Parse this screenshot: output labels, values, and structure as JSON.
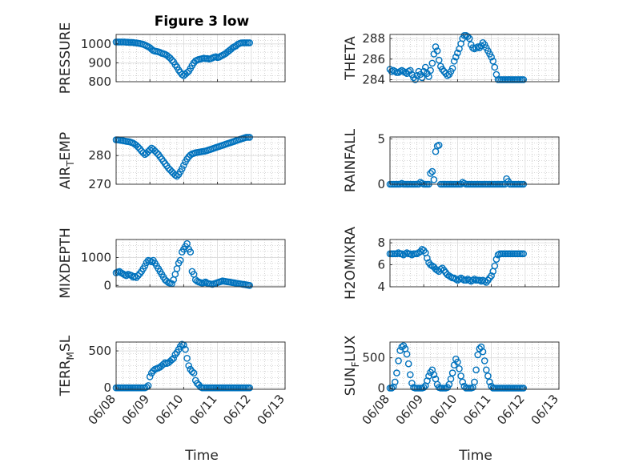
{
  "figure": {
    "title": "Figure 3 low",
    "xlabel": "Time"
  },
  "colors": {
    "marker": "#0072bd",
    "axis": "#262626",
    "grid": "#b0b0b0"
  },
  "chart_data": [
    {
      "type": "scatter",
      "name": "pressure",
      "ylabel": "PRESSURE",
      "ylim": [
        800,
        1050
      ],
      "yticks": [
        800,
        900,
        1000
      ],
      "ytick_labels": [
        "800",
        "900",
        "1000"
      ],
      "x": [
        0,
        0.05,
        0.1,
        0.15,
        0.2,
        0.25,
        0.3,
        0.35,
        0.4,
        0.45,
        0.5,
        0.55,
        0.6,
        0.65,
        0.7,
        0.75,
        0.8,
        0.85,
        0.9,
        0.95,
        1.0,
        1.05,
        1.1,
        1.15,
        1.2,
        1.25,
        1.3,
        1.35,
        1.4,
        1.45,
        1.5,
        1.55,
        1.6,
        1.65,
        1.7,
        1.75,
        1.8,
        1.85,
        1.9,
        1.95,
        2.0,
        2.05,
        2.1,
        2.15,
        2.2,
        2.25,
        2.3,
        2.35,
        2.4,
        2.45,
        2.5,
        2.55,
        2.6,
        2.65,
        2.7,
        2.75,
        2.8,
        2.85,
        2.9,
        2.95,
        3.0,
        3.05,
        3.1,
        3.15,
        3.2,
        3.25,
        3.3,
        3.35,
        3.4,
        3.45,
        3.5,
        3.55,
        3.6,
        3.65,
        3.7,
        3.75,
        3.8,
        3.85,
        3.9,
        3.95
      ],
      "y": [
        1010,
        1010,
        1010,
        1010,
        1010,
        1010,
        1009,
        1009,
        1008,
        1008,
        1007,
        1006,
        1005,
        1004,
        1002,
        1000,
        998,
        994,
        990,
        985,
        980,
        972,
        965,
        962,
        960,
        958,
        955,
        950,
        948,
        945,
        940,
        932,
        925,
        915,
        905,
        890,
        878,
        862,
        850,
        838,
        832,
        840,
        848,
        855,
        870,
        885,
        900,
        910,
        915,
        918,
        920,
        922,
        924,
        922,
        923,
        920,
        922,
        926,
        930,
        932,
        928,
        930,
        935,
        940,
        945,
        950,
        958,
        965,
        972,
        980,
        985,
        990,
        998,
        1002,
        1005,
        1006,
        1006,
        1006,
        1006,
        1006
      ]
    },
    {
      "type": "scatter",
      "name": "theta",
      "ylabel": "THETA",
      "ylim": [
        283.8,
        288.4
      ],
      "yticks": [
        284,
        286,
        288
      ],
      "ytick_labels": [
        "284",
        "286",
        "288"
      ],
      "x": [
        0,
        0.05,
        0.1,
        0.15,
        0.2,
        0.25,
        0.3,
        0.35,
        0.4,
        0.45,
        0.5,
        0.55,
        0.6,
        0.65,
        0.7,
        0.75,
        0.8,
        0.85,
        0.9,
        0.95,
        1.0,
        1.05,
        1.1,
        1.15,
        1.2,
        1.25,
        1.3,
        1.35,
        1.4,
        1.45,
        1.5,
        1.55,
        1.6,
        1.65,
        1.7,
        1.75,
        1.8,
        1.85,
        1.9,
        1.95,
        2.0,
        2.05,
        2.1,
        2.15,
        2.2,
        2.25,
        2.3,
        2.35,
        2.4,
        2.45,
        2.5,
        2.55,
        2.6,
        2.65,
        2.7,
        2.75,
        2.8,
        2.85,
        2.9,
        2.95,
        3.0,
        3.05,
        3.1,
        3.15,
        3.2,
        3.25,
        3.3,
        3.35,
        3.4,
        3.45,
        3.5,
        3.55,
        3.6,
        3.65,
        3.7,
        3.75,
        3.8,
        3.85,
        3.9,
        3.95
      ],
      "y": [
        285.0,
        284.8,
        284.9,
        284.8,
        284.7,
        284.7,
        284.8,
        284.9,
        284.8,
        284.7,
        284.6,
        284.8,
        284.9,
        284.5,
        284.2,
        284.0,
        284.4,
        284.8,
        284.5,
        284.2,
        284.8,
        285.2,
        284.6,
        284.3,
        284.9,
        285.6,
        286.5,
        287.2,
        286.8,
        285.9,
        285.3,
        285.0,
        284.8,
        284.6,
        284.4,
        284.5,
        284.8,
        285.1,
        285.8,
        286.2,
        286.6,
        287.0,
        287.5,
        288.0,
        288.3,
        288.3,
        288.2,
        288.0,
        287.4,
        287.1,
        287.0,
        287.1,
        287.2,
        287.1,
        287.3,
        287.6,
        287.4,
        287.1,
        286.8,
        286.5,
        286.2,
        285.8,
        285.2,
        284.5,
        284.0,
        284.0,
        284.0,
        284.0,
        284.0,
        284.0,
        284.0,
        284.0,
        284.0,
        284.0,
        284.0,
        284.0,
        284.0,
        284.0,
        284.0,
        284.0
      ]
    },
    {
      "type": "scatter",
      "name": "air_temp",
      "ylabel": "AIR",
      "ylabel_sub": "T",
      "ylabel_rest": "EMP",
      "ylim": [
        270,
        286.5
      ],
      "yticks": [
        270,
        280
      ],
      "ytick_labels": [
        "270",
        "280"
      ],
      "x": [
        0,
        0.05,
        0.1,
        0.15,
        0.2,
        0.25,
        0.3,
        0.35,
        0.4,
        0.45,
        0.5,
        0.55,
        0.6,
        0.65,
        0.7,
        0.75,
        0.8,
        0.85,
        0.9,
        0.95,
        1.0,
        1.05,
        1.1,
        1.15,
        1.2,
        1.25,
        1.3,
        1.35,
        1.4,
        1.45,
        1.5,
        1.55,
        1.6,
        1.65,
        1.7,
        1.75,
        1.8,
        1.85,
        1.9,
        1.95,
        2.0,
        2.05,
        2.1,
        2.15,
        2.2,
        2.25,
        2.3,
        2.35,
        2.4,
        2.45,
        2.5,
        2.55,
        2.6,
        2.65,
        2.7,
        2.75,
        2.8,
        2.85,
        2.9,
        2.95,
        3.0,
        3.05,
        3.1,
        3.15,
        3.2,
        3.25,
        3.3,
        3.35,
        3.4,
        3.45,
        3.5,
        3.55,
        3.6,
        3.65,
        3.7,
        3.75,
        3.8,
        3.85,
        3.9,
        3.95
      ],
      "y": [
        285.5,
        285.5,
        285.4,
        285.3,
        285.2,
        285.1,
        285.0,
        284.9,
        284.8,
        284.6,
        284.4,
        284.0,
        283.6,
        283.0,
        282.4,
        281.6,
        281.0,
        280.4,
        280.8,
        281.4,
        282.0,
        282.6,
        282.2,
        281.6,
        281.0,
        280.4,
        279.6,
        278.8,
        278.0,
        277.2,
        276.4,
        275.6,
        275.0,
        274.4,
        273.8,
        273.2,
        272.8,
        273.4,
        274.4,
        275.4,
        276.6,
        277.8,
        278.8,
        279.6,
        280.2,
        280.6,
        280.8,
        281.0,
        281.1,
        281.2,
        281.3,
        281.4,
        281.5,
        281.6,
        281.8,
        282.0,
        282.2,
        282.4,
        282.6,
        282.8,
        283.0,
        283.2,
        283.4,
        283.6,
        283.8,
        284.0,
        284.2,
        284.4,
        284.6,
        284.8,
        285.0,
        285.2,
        285.4,
        285.6,
        285.8,
        286.0,
        286.2,
        286.4,
        286.4,
        286.4
      ]
    },
    {
      "type": "scatter",
      "name": "rainfall",
      "ylabel": "RAINFALL",
      "ylim": [
        0,
        5.2
      ],
      "yticks": [
        0,
        5
      ],
      "ytick_labels": [
        "0",
        "5"
      ],
      "x": [
        0,
        0.05,
        0.1,
        0.15,
        0.2,
        0.25,
        0.3,
        0.35,
        0.4,
        0.45,
        0.5,
        0.55,
        0.6,
        0.65,
        0.7,
        0.75,
        0.8,
        0.85,
        0.9,
        0.95,
        1.0,
        1.05,
        1.1,
        1.15,
        1.2,
        1.25,
        1.3,
        1.35,
        1.4,
        1.45,
        1.5,
        1.55,
        1.6,
        1.65,
        1.7,
        1.75,
        1.8,
        1.85,
        1.9,
        1.95,
        2.0,
        2.05,
        2.1,
        2.15,
        2.2,
        2.25,
        2.3,
        2.35,
        2.4,
        2.45,
        2.5,
        2.55,
        2.6,
        2.65,
        2.7,
        2.75,
        2.8,
        2.85,
        2.9,
        2.95,
        3.0,
        3.05,
        3.1,
        3.15,
        3.2,
        3.25,
        3.3,
        3.35,
        3.4,
        3.45,
        3.5,
        3.55,
        3.6,
        3.65,
        3.7,
        3.75,
        3.8,
        3.85,
        3.9,
        3.95
      ],
      "y": [
        0,
        0,
        0,
        0,
        0,
        0,
        0,
        0.1,
        0,
        0,
        0,
        0,
        0,
        0,
        0,
        0,
        0,
        0,
        0.2,
        0.1,
        0,
        0,
        0,
        0,
        1.2,
        1.4,
        0.5,
        3.6,
        4.2,
        4.3,
        0,
        0,
        0,
        0,
        0,
        0,
        0,
        0,
        0,
        0,
        0,
        0,
        0,
        0.2,
        0.1,
        0,
        0,
        0,
        0,
        0,
        0,
        0,
        0,
        0,
        0,
        0,
        0,
        0,
        0,
        0,
        0,
        0,
        0,
        0,
        0,
        0,
        0,
        0,
        0,
        0.6,
        0.3,
        0,
        0,
        0,
        0,
        0,
        0,
        0,
        0,
        0
      ]
    },
    {
      "type": "scatter",
      "name": "mixdepth",
      "ylabel": "MIXDEPTH",
      "ylim": [
        -50,
        1650
      ],
      "yticks": [
        0,
        1000
      ],
      "ytick_labels": [
        "0",
        "1000"
      ],
      "x": [
        0,
        0.05,
        0.1,
        0.15,
        0.2,
        0.25,
        0.3,
        0.35,
        0.4,
        0.45,
        0.5,
        0.55,
        0.6,
        0.65,
        0.7,
        0.75,
        0.8,
        0.85,
        0.9,
        0.95,
        1.0,
        1.05,
        1.1,
        1.15,
        1.2,
        1.25,
        1.3,
        1.35,
        1.4,
        1.45,
        1.5,
        1.55,
        1.6,
        1.65,
        1.7,
        1.75,
        1.8,
        1.85,
        1.9,
        1.95,
        2.0,
        2.05,
        2.1,
        2.15,
        2.2,
        2.25,
        2.3,
        2.35,
        2.4,
        2.45,
        2.5,
        2.55,
        2.6,
        2.65,
        2.7,
        2.75,
        2.8,
        2.85,
        2.9,
        2.95,
        3.0,
        3.05,
        3.1,
        3.15,
        3.2,
        3.25,
        3.3,
        3.35,
        3.4,
        3.45,
        3.5,
        3.55,
        3.6,
        3.65,
        3.7,
        3.75,
        3.8,
        3.85,
        3.9,
        3.95
      ],
      "y": [
        450,
        480,
        500,
        450,
        420,
        380,
        350,
        400,
        380,
        360,
        300,
        320,
        280,
        350,
        420,
        500,
        600,
        700,
        820,
        900,
        880,
        850,
        900,
        800,
        700,
        600,
        500,
        400,
        300,
        200,
        150,
        100,
        80,
        60,
        200,
        400,
        600,
        800,
        900,
        1200,
        1300,
        1400,
        1500,
        1300,
        1200,
        500,
        400,
        200,
        150,
        120,
        100,
        80,
        100,
        120,
        80,
        60,
        50,
        40,
        60,
        80,
        100,
        120,
        140,
        160,
        150,
        140,
        130,
        120,
        110,
        100,
        90,
        80,
        70,
        60,
        50,
        40,
        30,
        20,
        10,
        0
      ]
    },
    {
      "type": "scatter",
      "name": "h2omixra",
      "ylabel": "H2OMIXRA",
      "ylim": [
        4,
        8.3
      ],
      "yticks": [
        4,
        6,
        8
      ],
      "ytick_labels": [
        "4",
        "6",
        "8"
      ],
      "x": [
        0,
        0.05,
        0.1,
        0.15,
        0.2,
        0.25,
        0.3,
        0.35,
        0.4,
        0.45,
        0.5,
        0.55,
        0.6,
        0.65,
        0.7,
        0.75,
        0.8,
        0.85,
        0.9,
        0.95,
        1.0,
        1.05,
        1.1,
        1.15,
        1.2,
        1.25,
        1.3,
        1.35,
        1.4,
        1.45,
        1.5,
        1.55,
        1.6,
        1.65,
        1.7,
        1.75,
        1.8,
        1.85,
        1.9,
        1.95,
        2.0,
        2.05,
        2.1,
        2.15,
        2.2,
        2.25,
        2.3,
        2.35,
        2.4,
        2.45,
        2.5,
        2.55,
        2.6,
        2.65,
        2.7,
        2.75,
        2.8,
        2.85,
        2.9,
        2.95,
        3.0,
        3.05,
        3.1,
        3.15,
        3.2,
        3.25,
        3.3,
        3.35,
        3.4,
        3.45,
        3.5,
        3.55,
        3.6,
        3.65,
        3.7,
        3.75,
        3.8,
        3.85,
        3.9,
        3.95
      ],
      "y": [
        7.0,
        7.0,
        7.0,
        7.0,
        7.0,
        7.1,
        7.0,
        7.0,
        6.9,
        7.0,
        7.1,
        7.0,
        7.0,
        6.9,
        7.0,
        7.0,
        7.0,
        7.1,
        7.2,
        7.4,
        7.3,
        7.1,
        6.6,
        6.2,
        6.0,
        5.9,
        5.8,
        5.6,
        5.5,
        5.4,
        5.6,
        5.7,
        5.5,
        5.3,
        5.1,
        5.0,
        4.9,
        4.8,
        4.8,
        4.7,
        4.6,
        4.7,
        4.8,
        4.7,
        4.6,
        4.6,
        4.7,
        4.6,
        4.5,
        4.6,
        4.7,
        4.6,
        4.6,
        4.6,
        4.5,
        4.6,
        4.5,
        4.4,
        4.6,
        4.8,
        5.0,
        5.4,
        5.9,
        6.5,
        6.9,
        7.0,
        7.0,
        7.0,
        7.0,
        7.0,
        7.0,
        7.0,
        7.0,
        7.0,
        7.0,
        7.0,
        7.0,
        7.0,
        7.0,
        7.0
      ]
    },
    {
      "type": "scatter",
      "name": "terr_msl",
      "ylabel": "TERR",
      "ylabel_sub": "M",
      "ylabel_rest": "SL",
      "ylim": [
        -20,
        620
      ],
      "yticks": [
        0,
        500
      ],
      "ytick_labels": [
        "0",
        "500"
      ],
      "x": [
        0,
        0.05,
        0.1,
        0.15,
        0.2,
        0.25,
        0.3,
        0.35,
        0.4,
        0.45,
        0.5,
        0.55,
        0.6,
        0.65,
        0.7,
        0.75,
        0.8,
        0.85,
        0.9,
        0.95,
        1.0,
        1.05,
        1.1,
        1.15,
        1.2,
        1.25,
        1.3,
        1.35,
        1.4,
        1.45,
        1.5,
        1.55,
        1.6,
        1.65,
        1.7,
        1.75,
        1.8,
        1.85,
        1.9,
        1.95,
        2.0,
        2.05,
        2.1,
        2.15,
        2.2,
        2.25,
        2.3,
        2.35,
        2.4,
        2.45,
        2.5,
        2.55,
        2.6,
        2.65,
        2.7,
        2.75,
        2.8,
        2.85,
        2.9,
        2.95,
        3.0,
        3.05,
        3.1,
        3.15,
        3.2,
        3.25,
        3.3,
        3.35,
        3.4,
        3.45,
        3.5,
        3.55,
        3.6,
        3.65,
        3.7,
        3.75,
        3.8,
        3.85,
        3.9,
        3.95
      ],
      "y": [
        0,
        0,
        0,
        0,
        0,
        0,
        0,
        0,
        0,
        0,
        0,
        0,
        0,
        0,
        0,
        0,
        0,
        0,
        10,
        30,
        150,
        200,
        230,
        250,
        260,
        270,
        280,
        300,
        320,
        340,
        330,
        340,
        360,
        380,
        400,
        450,
        480,
        520,
        560,
        590,
        580,
        520,
        400,
        300,
        250,
        220,
        200,
        100,
        60,
        40,
        10,
        0,
        0,
        0,
        0,
        0,
        0,
        0,
        0,
        0,
        0,
        0,
        0,
        0,
        0,
        0,
        0,
        0,
        0,
        0,
        0,
        0,
        0,
        0,
        0,
        0,
        0,
        0,
        0,
        0
      ]
    },
    {
      "type": "scatter",
      "name": "sun_flux",
      "ylabel": "SUN",
      "ylabel_sub": "F",
      "ylabel_rest": "LUX",
      "ylim": [
        -20,
        760
      ],
      "yticks": [
        0,
        500
      ],
      "ytick_labels": [
        "0",
        "500"
      ],
      "x": [
        0,
        0.05,
        0.1,
        0.15,
        0.2,
        0.25,
        0.3,
        0.35,
        0.4,
        0.45,
        0.5,
        0.55,
        0.6,
        0.65,
        0.7,
        0.75,
        0.8,
        0.85,
        0.9,
        0.95,
        1.0,
        1.05,
        1.1,
        1.15,
        1.2,
        1.25,
        1.3,
        1.35,
        1.4,
        1.45,
        1.5,
        1.55,
        1.6,
        1.65,
        1.7,
        1.75,
        1.8,
        1.85,
        1.9,
        1.95,
        2.0,
        2.05,
        2.1,
        2.15,
        2.2,
        2.25,
        2.3,
        2.35,
        2.4,
        2.45,
        2.5,
        2.55,
        2.6,
        2.65,
        2.7,
        2.75,
        2.8,
        2.85,
        2.9,
        2.95,
        3.0,
        3.05,
        3.1,
        3.15,
        3.2,
        3.25,
        3.3,
        3.35,
        3.4,
        3.45,
        3.5,
        3.55,
        3.6,
        3.65,
        3.7,
        3.75,
        3.8,
        3.85,
        3.9,
        3.95
      ],
      "y": [
        0,
        0,
        20,
        100,
        250,
        450,
        620,
        680,
        700,
        650,
        560,
        400,
        220,
        80,
        10,
        0,
        0,
        0,
        0,
        0,
        10,
        40,
        120,
        200,
        260,
        300,
        220,
        150,
        60,
        10,
        0,
        0,
        0,
        0,
        10,
        60,
        150,
        250,
        380,
        480,
        430,
        320,
        200,
        100,
        30,
        0,
        0,
        0,
        0,
        10,
        100,
        300,
        550,
        650,
        680,
        600,
        450,
        300,
        200,
        100,
        30,
        0,
        0,
        0,
        0,
        0,
        0,
        0,
        0,
        0,
        0,
        0,
        0,
        0,
        0,
        0,
        0,
        0,
        0,
        0
      ]
    }
  ],
  "xaxis": {
    "xlim": [
      0,
      5
    ],
    "ticks": [
      0,
      1,
      2,
      3,
      4,
      5
    ],
    "tick_labels": [
      "06/08",
      "06/09",
      "06/10",
      "06/11",
      "06/12",
      "06/13"
    ]
  }
}
